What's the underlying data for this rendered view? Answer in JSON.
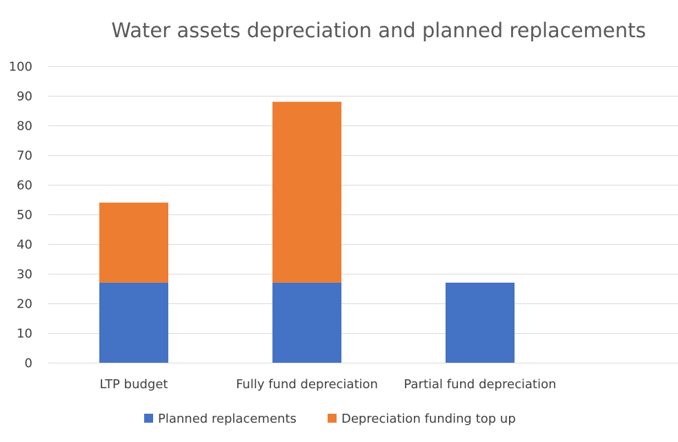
{
  "chart_data": {
    "type": "bar",
    "stacked": true,
    "title": "Water assets depreciation and planned replacements",
    "categories": [
      "LTP budget",
      "Fully fund depreciation",
      "Partial fund depreciation"
    ],
    "series": [
      {
        "name": "Planned replacements",
        "values": [
          27,
          27,
          27
        ],
        "color": "#4472c4"
      },
      {
        "name": "Depreciation funding top up",
        "values": [
          27,
          61,
          0
        ],
        "color": "#ed7d31"
      }
    ],
    "ylim": [
      0,
      100
    ],
    "yticks": [
      0,
      10,
      20,
      30,
      40,
      50,
      60,
      70,
      80,
      90,
      100
    ],
    "grid": true,
    "legend": "bottom"
  }
}
